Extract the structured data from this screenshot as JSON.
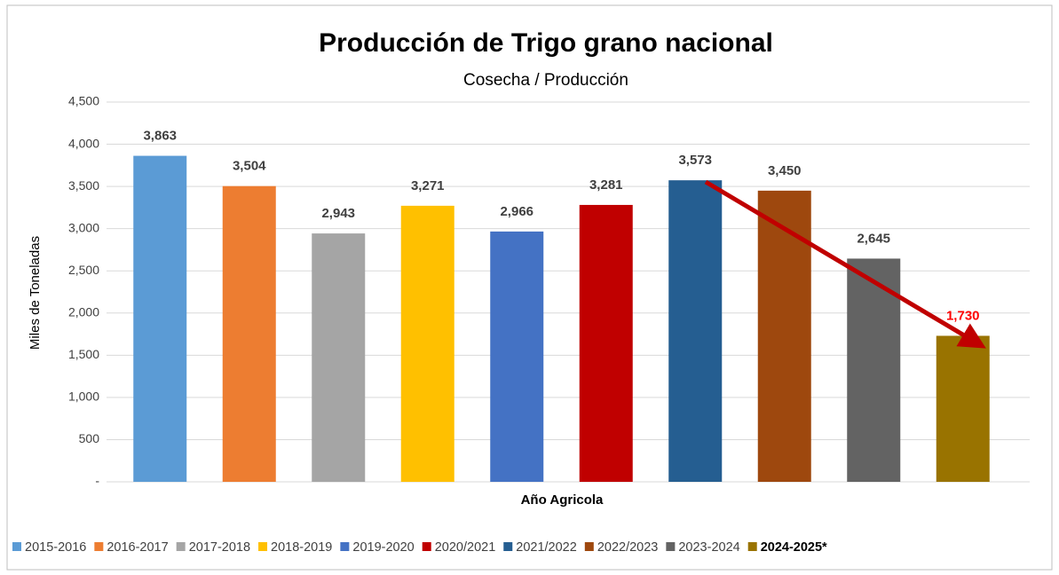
{
  "chart_data": {
    "type": "bar",
    "title": "Producción de Trigo grano nacional",
    "subtitle": "Cosecha / Producción",
    "x_label": "Año Agricola",
    "y_label": "Miles de Toneladas",
    "categories": [
      "2015-2016",
      "2016-2017",
      "2017-2018",
      "2018-2019",
      "2019-2020",
      "2020/2021",
      "2021/2022",
      "2022/2023",
      "2023-2024",
      "2024-2025*"
    ],
    "values": [
      3863,
      3504,
      2943,
      3271,
      2966,
      3281,
      3573,
      3450,
      2645,
      1730
    ],
    "value_labels": [
      "3,863",
      "3,504",
      "2,943",
      "3,271",
      "2,966",
      "3,281",
      "3,573",
      "3,450",
      "2,645",
      "1,730"
    ],
    "colors": [
      "#5b9bd5",
      "#ed7d31",
      "#a5a5a5",
      "#ffc000",
      "#4472c4",
      "#c00000",
      "#255e91",
      "#9e480e",
      "#636363",
      "#997300"
    ],
    "label_colors": [
      "#404040",
      "#404040",
      "#404040",
      "#404040",
      "#404040",
      "#404040",
      "#404040",
      "#404040",
      "#404040",
      "#ff0000"
    ],
    "ylim": [
      0,
      4500
    ],
    "yticks": [
      {
        "value": 0,
        "label": "-"
      },
      500,
      {
        "value": 1000,
        "label": "1,000"
      },
      {
        "value": 1500,
        "label": "1,500"
      },
      {
        "value": 2000,
        "label": "2,000"
      },
      {
        "value": 2500,
        "label": "2,500"
      },
      {
        "value": 3000,
        "label": "3,000"
      },
      {
        "value": 3500,
        "label": "3,500"
      },
      {
        "value": 4000,
        "label": "4,000"
      },
      {
        "value": 4500,
        "label": "4,500"
      }
    ],
    "grid": true,
    "legend": "bottom"
  }
}
